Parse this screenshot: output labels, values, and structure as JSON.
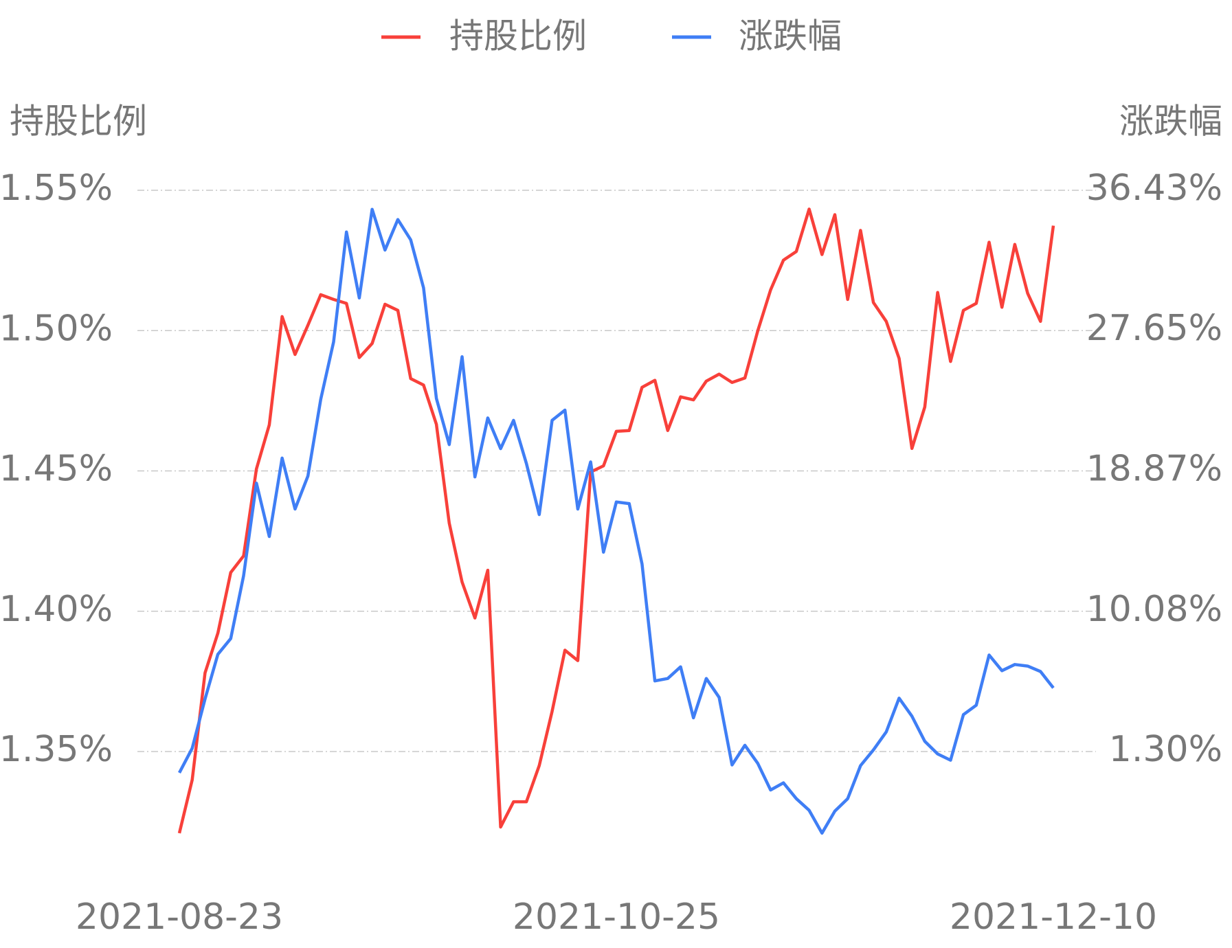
{
  "chart_data": {
    "type": "line",
    "y_label": "持股比例",
    "y2_label": "涨跌幅",
    "categories": [
      "2021-08-23",
      null,
      null,
      null,
      null,
      null,
      null,
      null,
      null,
      null,
      null,
      null,
      null,
      null,
      null,
      null,
      null,
      null,
      null,
      null,
      null,
      null,
      null,
      null,
      null,
      null,
      null,
      null,
      null,
      null,
      null,
      null,
      null,
      null,
      "2021-10-25",
      null,
      null,
      null,
      null,
      null,
      null,
      null,
      null,
      null,
      null,
      null,
      null,
      null,
      null,
      null,
      null,
      null,
      null,
      null,
      null,
      null,
      null,
      null,
      null,
      null,
      null,
      null,
      null,
      null,
      null,
      null,
      null,
      null,
      "2021-12-10"
    ],
    "series": [
      {
        "name": "持股比例",
        "color": "#f8403a",
        "axis": "y",
        "values": [
          1.3209,
          1.3399,
          1.378,
          1.3922,
          1.4138,
          1.4197,
          1.4507,
          1.4664,
          1.505,
          1.4915,
          1.5019,
          1.5128,
          1.5111,
          1.5097,
          1.4904,
          1.4954,
          1.5094,
          1.5072,
          1.4829,
          1.4806,
          1.4666,
          1.4314,
          1.4104,
          1.3976,
          1.4146,
          1.3231,
          1.3321,
          1.3321,
          1.345,
          1.3643,
          1.3861,
          1.3824,
          1.4496,
          1.4518,
          1.4641,
          1.4644,
          1.4798,
          1.4823,
          1.4644,
          1.4764,
          1.4753,
          1.482,
          1.4845,
          1.4815,
          1.4831,
          1.4999,
          1.5145,
          1.5251,
          1.5282,
          1.5433,
          1.5271,
          1.5413,
          1.5111,
          1.5357,
          1.51,
          1.5033,
          1.4901,
          1.458,
          1.4728,
          1.5136,
          1.489,
          1.5072,
          1.5097,
          1.5315,
          1.5083,
          1.5307,
          1.5133,
          1.5033,
          1.5374
        ]
      },
      {
        "name": "涨跌幅",
        "color": "#3f7ef5",
        "axis": "y2",
        "values": [
          -0.03,
          1.5,
          4.59,
          7.39,
          8.37,
          12.3,
          18.1,
          14.76,
          19.67,
          16.48,
          18.54,
          23.35,
          26.94,
          33.82,
          29.69,
          35.24,
          32.69,
          34.6,
          33.33,
          30.33,
          23.4,
          20.51,
          26.01,
          18.49,
          22.18,
          20.26,
          22.03,
          19.33,
          16.13,
          22.03,
          22.67,
          16.48,
          19.43,
          13.78,
          16.92,
          16.82,
          13.04,
          5.72,
          5.87,
          6.6,
          3.41,
          5.87,
          4.69,
          0.46,
          1.69,
          0.56,
          -1.11,
          -0.66,
          -1.65,
          -2.38,
          -3.81,
          -2.43,
          -1.65,
          0.42,
          1.4,
          2.53,
          4.64,
          3.51,
          1.94,
          1.15,
          0.76,
          3.61,
          4.2,
          7.34,
          6.36,
          6.75,
          6.65,
          6.31,
          5.28
        ]
      }
    ],
    "ylim": [
      1.35,
      1.55
    ],
    "yticks": [
      {
        "value": 1.35,
        "label": "1.35%"
      },
      {
        "value": 1.4,
        "label": "1.40%"
      },
      {
        "value": 1.45,
        "label": "1.45%"
      },
      {
        "value": 1.5,
        "label": "1.50%"
      },
      {
        "value": 1.55,
        "label": "1.55%"
      }
    ],
    "y2lim": [
      1.3,
      36.43
    ],
    "y2ticks": [
      {
        "value": 1.3,
        "label": "1.30%"
      },
      {
        "value": 10.08,
        "label": "10.08%"
      },
      {
        "value": 18.87,
        "label": "18.87%"
      },
      {
        "value": 27.65,
        "label": "27.65%"
      },
      {
        "value": 36.43,
        "label": "36.43%"
      }
    ],
    "grid": true,
    "legend": "top"
  }
}
